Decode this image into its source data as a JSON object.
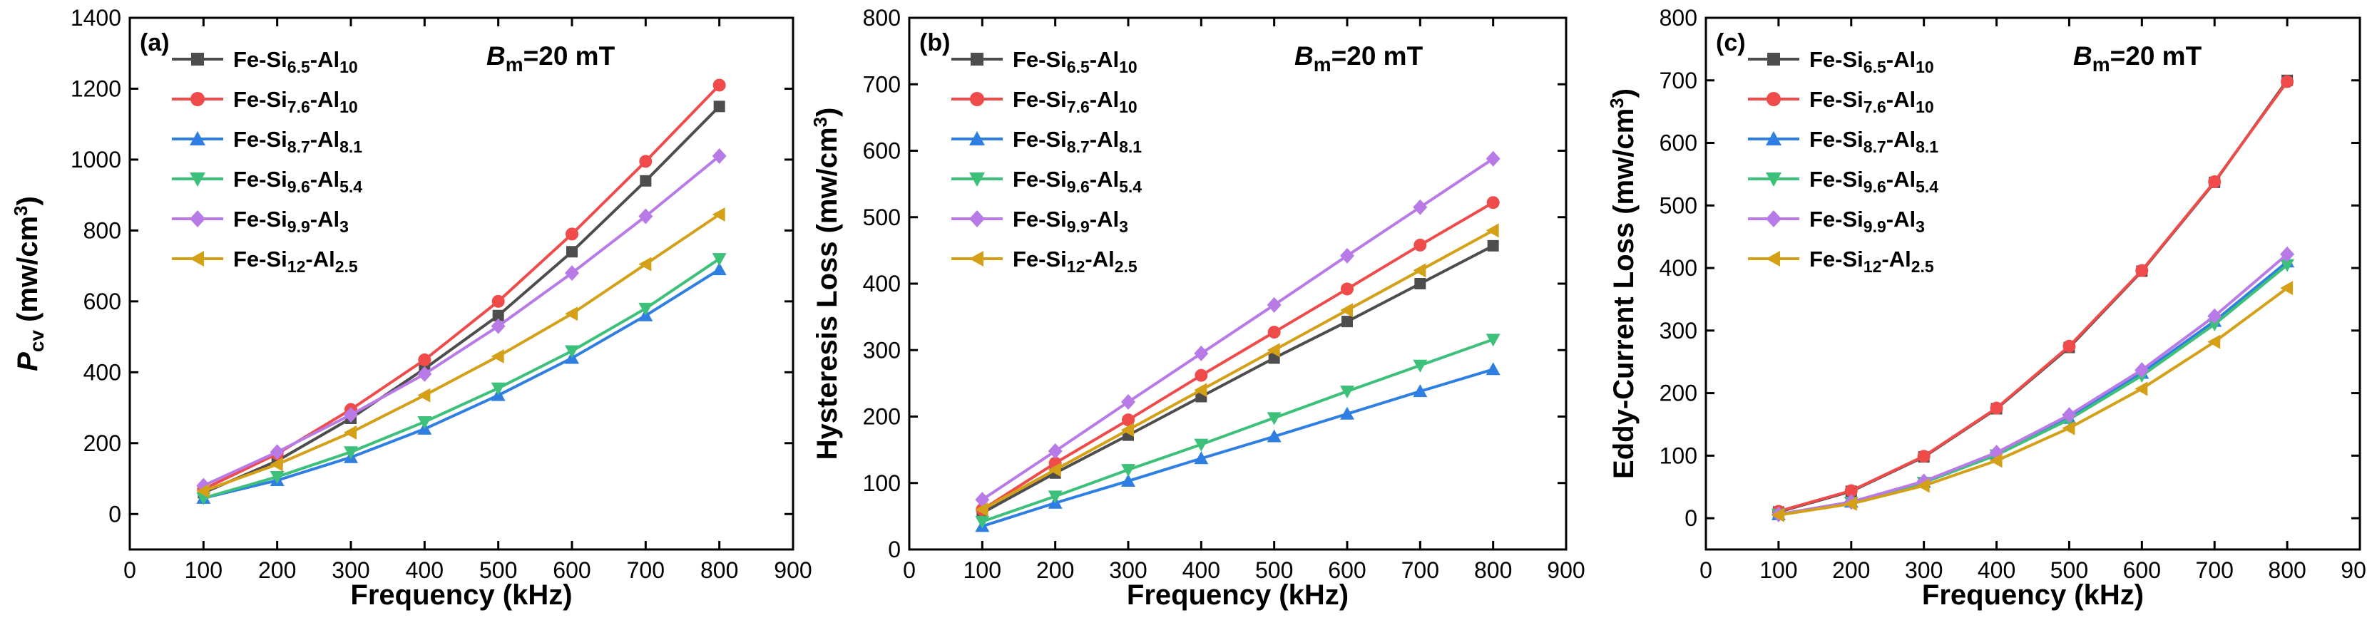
{
  "chart_data": [
    {
      "type": "line",
      "panel_label": "(a)",
      "annotation": {
        "symbol": "B",
        "sub": "m",
        "text": "=20 mT"
      },
      "xlabel": "Frequency (kHz)",
      "ylabel": {
        "main": "P",
        "sub": "cv",
        "rest": " (mw/cm",
        "sup": "3",
        "close": ")"
      },
      "xlim": [
        0,
        900
      ],
      "ylim": [
        -100,
        1400
      ],
      "xticks": [
        "0",
        "100",
        "200",
        "300",
        "400",
        "500",
        "600",
        "700",
        "800",
        "900"
      ],
      "yticks": [
        "0",
        "200",
        "400",
        "600",
        "800",
        "1000",
        "1200",
        "1400"
      ],
      "legend_position": "top-left",
      "x": [
        100,
        200,
        300,
        400,
        500,
        600,
        700,
        800
      ],
      "series": [
        {
          "name": "Fe-Si6.5-Al10",
          "base": "Fe-Si",
          "sub1": "6.5",
          "mid": "-Al",
          "sub2": "10",
          "color": "#4d4d4d",
          "marker": "square",
          "values": [
            60,
            150,
            270,
            410,
            560,
            740,
            940,
            1150
          ]
        },
        {
          "name": "Fe-Si7.6-Al10",
          "base": "Fe-Si",
          "sub1": "7.6",
          "mid": "-Al",
          "sub2": "10",
          "color": "#ef4b4b",
          "marker": "circle",
          "values": [
            70,
            170,
            295,
            435,
            600,
            790,
            995,
            1210
          ]
        },
        {
          "name": "Fe-Si8.7-Al8.1",
          "base": "Fe-Si",
          "sub1": "8.7",
          "mid": "-Al",
          "sub2": "8.1",
          "color": "#2f7fe3",
          "marker": "triangle-up",
          "values": [
            45,
            95,
            160,
            240,
            335,
            440,
            560,
            690
          ]
        },
        {
          "name": "Fe-Si9.6-Al5.4",
          "base": "Fe-Si",
          "sub1": "9.6",
          "mid": "-Al",
          "sub2": "5.4",
          "color": "#3cc07a",
          "marker": "triangle-down",
          "values": [
            45,
            105,
            175,
            260,
            355,
            460,
            580,
            720
          ]
        },
        {
          "name": "Fe-Si9.9-Al3",
          "base": "Fe-Si",
          "sub1": "9.9",
          "mid": "-Al",
          "sub2": "3",
          "color": "#b87ae6",
          "marker": "diamond",
          "values": [
            80,
            175,
            280,
            395,
            530,
            680,
            840,
            1010
          ]
        },
        {
          "name": "Fe-Si12-Al2.5",
          "base": "Fe-Si",
          "sub1": "12",
          "mid": "-Al",
          "sub2": "2.5",
          "color": "#d4a017",
          "marker": "triangle-left",
          "values": [
            65,
            140,
            230,
            335,
            445,
            565,
            705,
            845
          ]
        }
      ]
    },
    {
      "type": "line",
      "panel_label": "(b)",
      "annotation": {
        "symbol": "B",
        "sub": "m",
        "text": "=20 mT"
      },
      "xlabel": "Frequency (kHz)",
      "ylabel": {
        "main": "Hysteresis Loss (mw/cm",
        "sup": "3",
        "close": ")"
      },
      "xlim": [
        0,
        900
      ],
      "ylim": [
        0,
        800
      ],
      "xticks": [
        "0",
        "100",
        "200",
        "300",
        "400",
        "500",
        "600",
        "700",
        "800",
        "900"
      ],
      "yticks": [
        "0",
        "100",
        "200",
        "300",
        "400",
        "500",
        "600",
        "700",
        "800"
      ],
      "legend_position": "top-left",
      "x": [
        100,
        200,
        300,
        400,
        500,
        600,
        700,
        800
      ],
      "series": [
        {
          "name": "Fe-Si6.5-Al10",
          "base": "Fe-Si",
          "sub1": "6.5",
          "mid": "-Al",
          "sub2": "10",
          "color": "#4d4d4d",
          "marker": "square",
          "values": [
            55,
            115,
            172,
            230,
            288,
            343,
            400,
            457
          ]
        },
        {
          "name": "Fe-Si7.6-Al10",
          "base": "Fe-Si",
          "sub1": "7.6",
          "mid": "-Al",
          "sub2": "10",
          "color": "#ef4b4b",
          "marker": "circle",
          "values": [
            60,
            130,
            195,
            262,
            327,
            392,
            458,
            522
          ]
        },
        {
          "name": "Fe-Si8.7-Al8.1",
          "base": "Fe-Si",
          "sub1": "8.7",
          "mid": "-Al",
          "sub2": "8.1",
          "color": "#2f7fe3",
          "marker": "triangle-up",
          "values": [
            35,
            70,
            103,
            137,
            170,
            204,
            238,
            271
          ]
        },
        {
          "name": "Fe-Si9.6-Al5.4",
          "base": "Fe-Si",
          "sub1": "9.6",
          "mid": "-Al",
          "sub2": "5.4",
          "color": "#3cc07a",
          "marker": "triangle-down",
          "values": [
            42,
            80,
            120,
            158,
            198,
            238,
            277,
            316
          ]
        },
        {
          "name": "Fe-Si9.9-Al3",
          "base": "Fe-Si",
          "sub1": "9.9",
          "mid": "-Al",
          "sub2": "3",
          "color": "#b87ae6",
          "marker": "diamond",
          "values": [
            75,
            148,
            222,
            295,
            368,
            442,
            515,
            588
          ]
        },
        {
          "name": "Fe-Si12-Al2.5",
          "base": "Fe-Si",
          "sub1": "12",
          "mid": "-Al",
          "sub2": "2.5",
          "color": "#d4a017",
          "marker": "triangle-left",
          "values": [
            60,
            120,
            180,
            240,
            300,
            360,
            420,
            480
          ]
        }
      ]
    },
    {
      "type": "line",
      "panel_label": "(c)",
      "annotation": {
        "symbol": "B",
        "sub": "m",
        "text": "=20 mT"
      },
      "xlabel": "Frequency (kHz)",
      "ylabel": {
        "main": "Eddy-Current Loss (mw/cm",
        "sup": "3",
        "close": ")"
      },
      "xlim": [
        0,
        900
      ],
      "ylim": [
        -50,
        800
      ],
      "xticks": [
        "0",
        "100",
        "200",
        "300",
        "400",
        "500",
        "600",
        "700",
        "800",
        "900"
      ],
      "yticks": [
        "0",
        "100",
        "200",
        "300",
        "400",
        "500",
        "600",
        "700",
        "800"
      ],
      "legend_position": "top-left",
      "x": [
        100,
        200,
        300,
        400,
        500,
        600,
        700,
        800
      ],
      "series": [
        {
          "name": "Fe-Si6.5-Al10",
          "base": "Fe-Si",
          "sub1": "6.5",
          "mid": "-Al",
          "sub2": "10",
          "color": "#4d4d4d",
          "marker": "square",
          "values": [
            10,
            43,
            98,
            175,
            273,
            395,
            537,
            700
          ]
        },
        {
          "name": "Fe-Si7.6-Al10",
          "base": "Fe-Si",
          "sub1": "7.6",
          "mid": "-Al",
          "sub2": "10",
          "color": "#ef4b4b",
          "marker": "circle",
          "values": [
            11,
            44,
            99,
            176,
            275,
            396,
            538,
            698
          ]
        },
        {
          "name": "Fe-Si8.7-Al8.1",
          "base": "Fe-Si",
          "sub1": "8.7",
          "mid": "-Al",
          "sub2": "8.1",
          "color": "#2f7fe3",
          "marker": "triangle-up",
          "values": [
            6,
            26,
            58,
            103,
            160,
            232,
            315,
            410
          ]
        },
        {
          "name": "Fe-Si9.6-Al5.4",
          "base": "Fe-Si",
          "sub1": "9.6",
          "mid": "-Al",
          "sub2": "5.4",
          "color": "#3cc07a",
          "marker": "triangle-down",
          "values": [
            6,
            25,
            57,
            101,
            158,
            228,
            310,
            405
          ]
        },
        {
          "name": "Fe-Si9.9-Al3",
          "base": "Fe-Si",
          "sub1": "9.9",
          "mid": "-Al",
          "sub2": "3",
          "color": "#b87ae6",
          "marker": "diamond",
          "values": [
            6,
            26,
            59,
            105,
            165,
            237,
            323,
            422
          ]
        },
        {
          "name": "Fe-Si12-Al2.5",
          "base": "Fe-Si",
          "sub1": "12",
          "mid": "-Al",
          "sub2": "2.5",
          "color": "#d4a017",
          "marker": "triangle-left",
          "values": [
            5,
            23,
            52,
            92,
            144,
            207,
            282,
            368
          ]
        }
      ]
    }
  ]
}
